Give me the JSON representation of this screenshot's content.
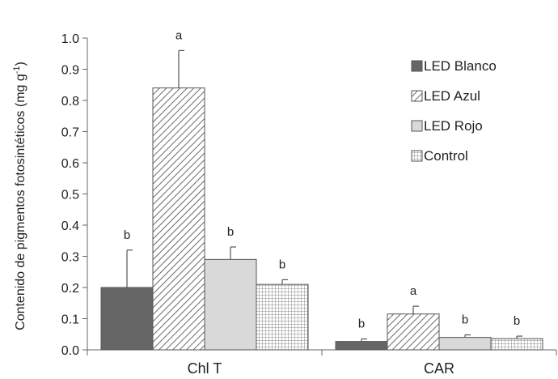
{
  "chart_data": {
    "type": "bar",
    "categories": [
      "Chl T",
      "CAR"
    ],
    "ylabel": "Contenido de pigmentos fotosintéticos (mg g-1)",
    "ylabel_parts": [
      "Contenido de pigmentos fotosintéticos (mg g",
      "-1",
      ")"
    ],
    "xlabel": "",
    "title": "",
    "ylim": [
      0,
      1.0
    ],
    "yticks": [
      "0.0",
      "0.1",
      "0.2",
      "0.3",
      "0.4",
      "0.5",
      "0.6",
      "0.7",
      "0.8",
      "0.9",
      "1.0"
    ],
    "grid": false,
    "legend_position": "top-right",
    "series": [
      {
        "name": "LED Blanco",
        "pattern": "solid-dark",
        "color": "#666666",
        "values": [
          0.2,
          0.027
        ],
        "errors": [
          0.12,
          0.008
        ],
        "letters": [
          "b",
          "b"
        ]
      },
      {
        "name": "LED Azul",
        "pattern": "diagonal-hatch",
        "color": "#555555",
        "values": [
          0.84,
          0.115
        ],
        "errors": [
          0.12,
          0.025
        ],
        "letters": [
          "a",
          "a"
        ]
      },
      {
        "name": "LED Rojo",
        "pattern": "light-solid",
        "color": "#d9d9d9",
        "values": [
          0.29,
          0.04
        ],
        "errors": [
          0.04,
          0.008
        ],
        "letters": [
          "b",
          "b"
        ]
      },
      {
        "name": "Control",
        "pattern": "grid",
        "color": "#888888",
        "values": [
          0.21,
          0.036
        ],
        "errors": [
          0.015,
          0.008
        ],
        "letters": [
          "b",
          "b"
        ]
      }
    ]
  }
}
